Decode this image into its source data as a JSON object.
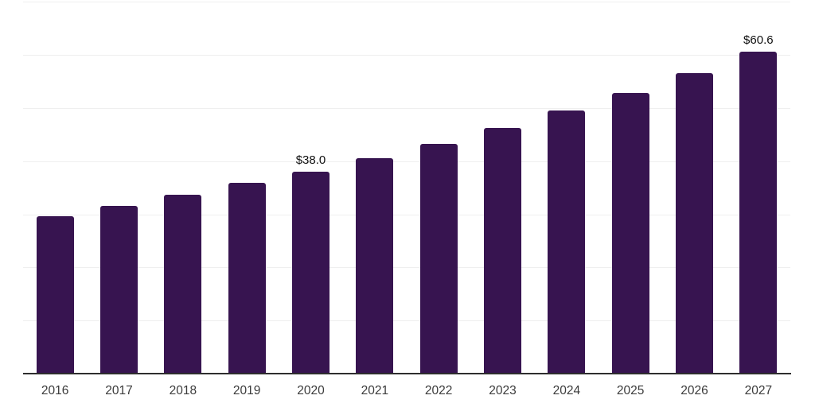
{
  "chart_data": {
    "type": "bar",
    "title": "",
    "xlabel": "",
    "ylabel": "",
    "categories": [
      "2016",
      "2017",
      "2018",
      "2019",
      "2020",
      "2021",
      "2022",
      "2023",
      "2024",
      "2025",
      "2026",
      "2027"
    ],
    "values": [
      29.7,
      31.6,
      33.7,
      35.9,
      38.0,
      40.5,
      43.3,
      46.3,
      49.6,
      52.9,
      56.6,
      60.6
    ],
    "data_labels": {
      "2020": "$38.0",
      "2027": "$60.6"
    },
    "ylim": [
      0,
      70
    ],
    "gridline_step": 10,
    "grid": "horizontal-only",
    "legend": "none",
    "y_axis_tick_labels_visible": false,
    "colors": {
      "bar": "#371450",
      "background": "#ffffff",
      "gridline": "#efefef",
      "axis_line": "#2e2e2e",
      "tick_label": "#3b3b3b",
      "value_label": "#101010"
    }
  }
}
